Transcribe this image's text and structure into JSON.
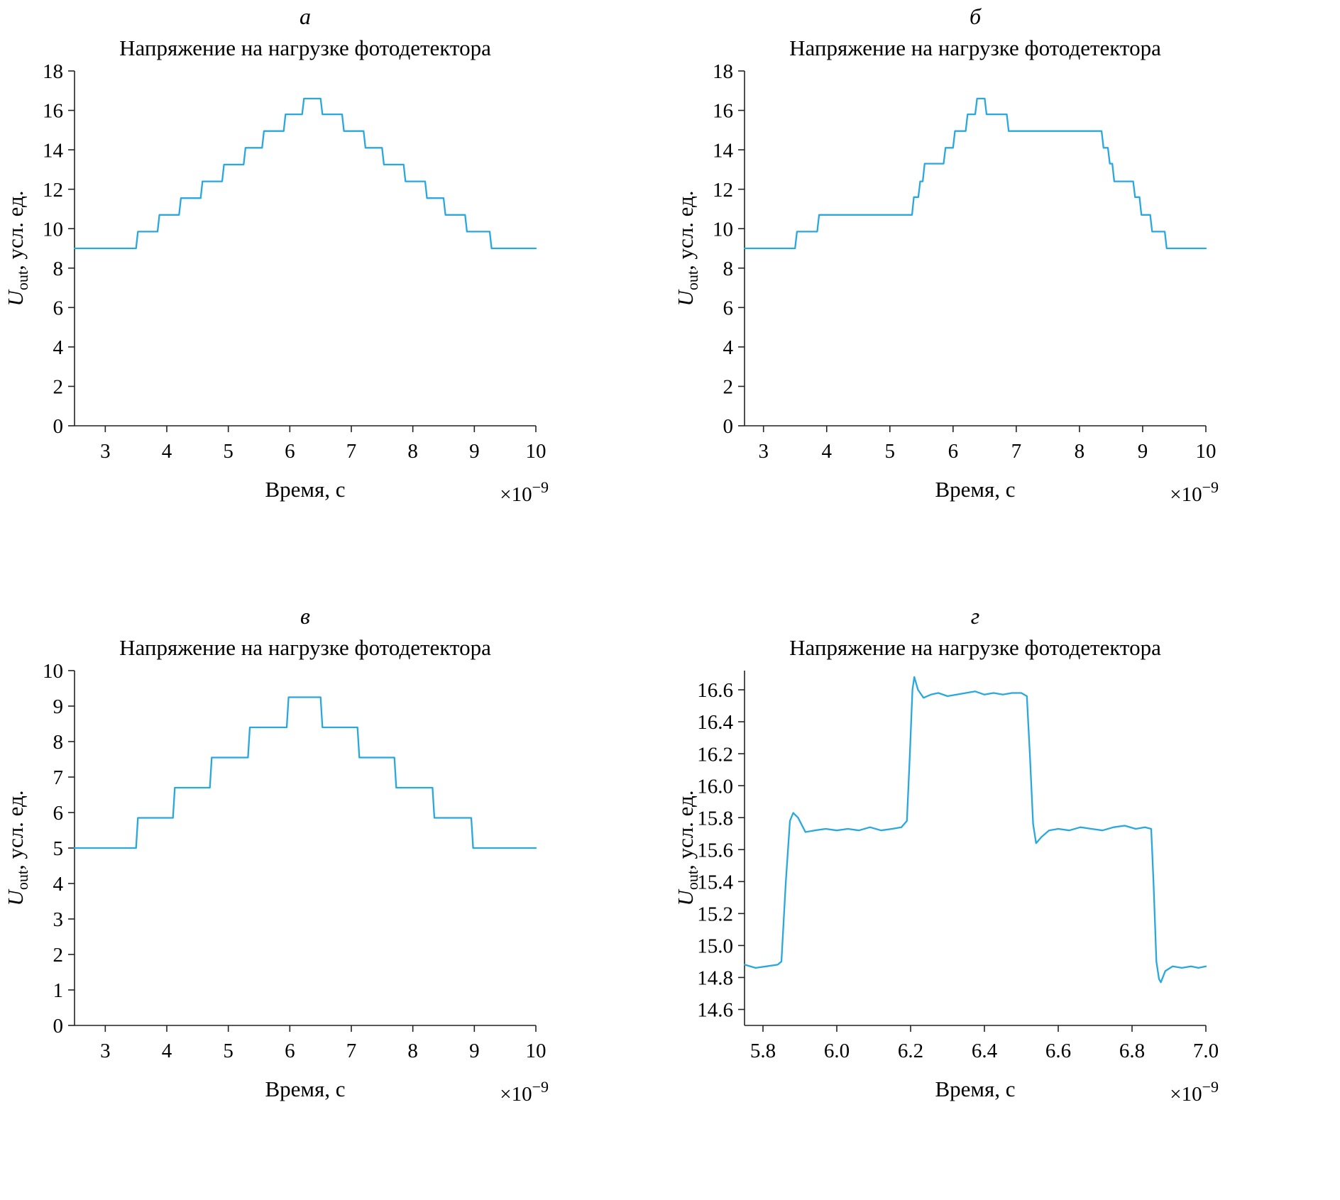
{
  "figure": {
    "background": "#ffffff",
    "axis_color": "#222222",
    "text_color": "#000000"
  },
  "chart_data": [
    {
      "type": "line",
      "panel_label": "а",
      "title": "Напряжение на нагрузке фотодетектора",
      "xlabel": "Время, с",
      "x_offset": {
        "base": "×10",
        "exp": "−9"
      },
      "ylabel": {
        "var": "U",
        "sub": "out",
        "rest": ", усл. ед."
      },
      "xlim": [
        2.5,
        10
      ],
      "ylim": [
        0,
        18
      ],
      "xticks": {
        "values": [
          3,
          4,
          5,
          6,
          7,
          8,
          9,
          10
        ],
        "labels": [
          "3",
          "4",
          "5",
          "6",
          "7",
          "8",
          "9",
          "10"
        ]
      },
      "yticks": {
        "values": [
          0,
          2,
          4,
          6,
          8,
          10,
          12,
          14,
          16,
          18
        ],
        "labels": [
          "0",
          "2",
          "4",
          "6",
          "8",
          "10",
          "12",
          "14",
          "16",
          "18"
        ]
      },
      "line_color": "#29A8E0",
      "legend": null,
      "grid": false,
      "series": [
        {
          "name": "Uout",
          "points": [
            [
              2.5,
              9
            ],
            [
              3.5,
              9
            ],
            [
              3.53,
              9.85
            ],
            [
              3.85,
              9.85
            ],
            [
              3.88,
              10.7
            ],
            [
              4.2,
              10.7
            ],
            [
              4.23,
              11.55
            ],
            [
              4.55,
              11.55
            ],
            [
              4.58,
              12.4
            ],
            [
              4.9,
              12.4
            ],
            [
              4.93,
              13.25
            ],
            [
              5.25,
              13.25
            ],
            [
              5.28,
              14.1
            ],
            [
              5.55,
              14.1
            ],
            [
              5.58,
              14.95
            ],
            [
              5.9,
              14.95
            ],
            [
              5.93,
              15.8
            ],
            [
              6.2,
              15.8
            ],
            [
              6.23,
              16.6
            ],
            [
              6.5,
              16.6
            ],
            [
              6.53,
              15.8
            ],
            [
              6.85,
              15.8
            ],
            [
              6.88,
              14.95
            ],
            [
              7.2,
              14.95
            ],
            [
              7.23,
              14.1
            ],
            [
              7.5,
              14.1
            ],
            [
              7.53,
              13.25
            ],
            [
              7.85,
              13.25
            ],
            [
              7.88,
              12.4
            ],
            [
              8.2,
              12.4
            ],
            [
              8.23,
              11.55
            ],
            [
              8.5,
              11.55
            ],
            [
              8.53,
              10.7
            ],
            [
              8.85,
              10.7
            ],
            [
              8.88,
              9.85
            ],
            [
              9.25,
              9.85
            ],
            [
              9.28,
              9
            ],
            [
              10,
              9
            ]
          ]
        }
      ]
    },
    {
      "type": "line",
      "panel_label": "б",
      "title": "Напряжение на нагрузке фотодетектора",
      "xlabel": "Время, с",
      "x_offset": {
        "base": "×10",
        "exp": "−9"
      },
      "ylabel": {
        "var": "U",
        "sub": "out",
        "rest": ", усл. ед."
      },
      "xlim": [
        2.7,
        10
      ],
      "ylim": [
        0,
        18
      ],
      "xticks": {
        "values": [
          3,
          4,
          5,
          6,
          7,
          8,
          9,
          10
        ],
        "labels": [
          "3",
          "4",
          "5",
          "6",
          "7",
          "8",
          "9",
          "10"
        ]
      },
      "yticks": {
        "values": [
          0,
          2,
          4,
          6,
          8,
          10,
          12,
          14,
          16,
          18
        ],
        "labels": [
          "0",
          "2",
          "4",
          "6",
          "8",
          "10",
          "12",
          "14",
          "16",
          "18"
        ]
      },
      "line_color": "#29A8E0",
      "legend": null,
      "grid": false,
      "series": [
        {
          "name": "Uout",
          "points": [
            [
              2.7,
              9
            ],
            [
              3.5,
              9
            ],
            [
              3.53,
              9.85
            ],
            [
              3.85,
              9.85
            ],
            [
              3.88,
              10.7
            ],
            [
              5.35,
              10.7
            ],
            [
              5.38,
              11.6
            ],
            [
              5.45,
              11.6
            ],
            [
              5.48,
              12.4
            ],
            [
              5.52,
              12.4
            ],
            [
              5.55,
              13.3
            ],
            [
              5.85,
              13.3
            ],
            [
              5.88,
              14.1
            ],
            [
              6.0,
              14.1
            ],
            [
              6.03,
              14.95
            ],
            [
              6.2,
              14.95
            ],
            [
              6.23,
              15.8
            ],
            [
              6.35,
              15.8
            ],
            [
              6.38,
              16.6
            ],
            [
              6.5,
              16.6
            ],
            [
              6.53,
              15.8
            ],
            [
              6.85,
              15.8
            ],
            [
              6.88,
              14.95
            ],
            [
              8.35,
              14.95
            ],
            [
              8.38,
              14.1
            ],
            [
              8.45,
              14.1
            ],
            [
              8.48,
              13.3
            ],
            [
              8.52,
              13.3
            ],
            [
              8.55,
              12.4
            ],
            [
              8.85,
              12.4
            ],
            [
              8.88,
              11.6
            ],
            [
              8.95,
              11.6
            ],
            [
              8.98,
              10.7
            ],
            [
              9.12,
              10.7
            ],
            [
              9.15,
              9.85
            ],
            [
              9.35,
              9.85
            ],
            [
              9.38,
              9
            ],
            [
              10,
              9
            ]
          ]
        }
      ]
    },
    {
      "type": "line",
      "panel_label": "в",
      "title": "Напряжение на нагрузке фотодетектора",
      "xlabel": "Время, с",
      "x_offset": {
        "base": "×10",
        "exp": "−9"
      },
      "ylabel": {
        "var": "U",
        "sub": "out",
        "rest": ", усл. ед."
      },
      "xlim": [
        2.5,
        10
      ],
      "ylim": [
        0,
        10
      ],
      "xticks": {
        "values": [
          3,
          4,
          5,
          6,
          7,
          8,
          9,
          10
        ],
        "labels": [
          "3",
          "4",
          "5",
          "6",
          "7",
          "8",
          "9",
          "10"
        ]
      },
      "yticks": {
        "values": [
          0,
          1,
          2,
          3,
          4,
          5,
          6,
          7,
          8,
          9,
          10
        ],
        "labels": [
          "0",
          "1",
          "2",
          "3",
          "4",
          "5",
          "6",
          "7",
          "8",
          "9",
          "10"
        ]
      },
      "line_color": "#29A8E0",
      "legend": null,
      "grid": false,
      "series": [
        {
          "name": "Uout",
          "points": [
            [
              2.5,
              5
            ],
            [
              3.5,
              5
            ],
            [
              3.53,
              5.85
            ],
            [
              4.1,
              5.85
            ],
            [
              4.13,
              6.7
            ],
            [
              4.7,
              6.7
            ],
            [
              4.73,
              7.55
            ],
            [
              5.32,
              7.55
            ],
            [
              5.35,
              8.4
            ],
            [
              5.95,
              8.4
            ],
            [
              5.98,
              9.25
            ],
            [
              6.5,
              9.25
            ],
            [
              6.53,
              8.4
            ],
            [
              7.1,
              8.4
            ],
            [
              7.13,
              7.55
            ],
            [
              7.7,
              7.55
            ],
            [
              7.73,
              6.7
            ],
            [
              8.32,
              6.7
            ],
            [
              8.35,
              5.85
            ],
            [
              8.95,
              5.85
            ],
            [
              8.98,
              5
            ],
            [
              10,
              5
            ]
          ]
        }
      ]
    },
    {
      "type": "line",
      "panel_label": "г",
      "title": "Напряжение на нагрузке фотодетектора",
      "xlabel": "Время, с",
      "x_offset": {
        "base": "×10",
        "exp": "−9"
      },
      "ylabel": {
        "var": "U",
        "sub": "out",
        "rest": ", усл. ед."
      },
      "xlim": [
        5.75,
        7.0
      ],
      "ylim": [
        14.5,
        16.72
      ],
      "xticks": {
        "values": [
          5.8,
          6.0,
          6.2,
          6.4,
          6.6,
          6.8,
          7.0
        ],
        "labels": [
          "5.8",
          "6.0",
          "6.2",
          "6.4",
          "6.6",
          "6.8",
          "7.0"
        ]
      },
      "yticks": {
        "values": [
          14.6,
          14.8,
          15.0,
          15.2,
          15.4,
          15.6,
          15.8,
          16.0,
          16.2,
          16.4,
          16.6
        ],
        "labels": [
          "14.6",
          "14.8",
          "15.0",
          "15.2",
          "15.4",
          "15.6",
          "15.8",
          "16.0",
          "16.2",
          "16.4",
          "16.6"
        ]
      },
      "line_color": "#29A8E0",
      "legend": null,
      "grid": false,
      "series": [
        {
          "name": "Uout",
          "points": [
            [
              5.75,
              14.88
            ],
            [
              5.78,
              14.86
            ],
            [
              5.81,
              14.87
            ],
            [
              5.84,
              14.88
            ],
            [
              5.85,
              14.9
            ],
            [
              5.862,
              15.4
            ],
            [
              5.873,
              15.78
            ],
            [
              5.882,
              15.83
            ],
            [
              5.895,
              15.8
            ],
            [
              5.915,
              15.71
            ],
            [
              5.94,
              15.72
            ],
            [
              5.97,
              15.73
            ],
            [
              6.0,
              15.72
            ],
            [
              6.03,
              15.73
            ],
            [
              6.06,
              15.72
            ],
            [
              6.09,
              15.74
            ],
            [
              6.12,
              15.72
            ],
            [
              6.15,
              15.73
            ],
            [
              6.175,
              15.74
            ],
            [
              6.19,
              15.78
            ],
            [
              6.198,
              16.2
            ],
            [
              6.205,
              16.6
            ],
            [
              6.21,
              16.68
            ],
            [
              6.22,
              16.6
            ],
            [
              6.235,
              16.55
            ],
            [
              6.255,
              16.57
            ],
            [
              6.275,
              16.58
            ],
            [
              6.3,
              16.56
            ],
            [
              6.325,
              16.57
            ],
            [
              6.35,
              16.58
            ],
            [
              6.375,
              16.59
            ],
            [
              6.4,
              16.57
            ],
            [
              6.425,
              16.58
            ],
            [
              6.45,
              16.57
            ],
            [
              6.475,
              16.58
            ],
            [
              6.5,
              16.58
            ],
            [
              6.515,
              16.56
            ],
            [
              6.523,
              16.2
            ],
            [
              6.532,
              15.76
            ],
            [
              6.54,
              15.64
            ],
            [
              6.555,
              15.68
            ],
            [
              6.575,
              15.72
            ],
            [
              6.6,
              15.73
            ],
            [
              6.63,
              15.72
            ],
            [
              6.66,
              15.74
            ],
            [
              6.69,
              15.73
            ],
            [
              6.72,
              15.72
            ],
            [
              6.75,
              15.74
            ],
            [
              6.78,
              15.75
            ],
            [
              6.81,
              15.73
            ],
            [
              6.835,
              15.74
            ],
            [
              6.852,
              15.73
            ],
            [
              6.858,
              15.4
            ],
            [
              6.866,
              14.9
            ],
            [
              6.873,
              14.79
            ],
            [
              6.878,
              14.77
            ],
            [
              6.89,
              14.84
            ],
            [
              6.91,
              14.87
            ],
            [
              6.935,
              14.86
            ],
            [
              6.96,
              14.87
            ],
            [
              6.98,
              14.86
            ],
            [
              7.0,
              14.87
            ]
          ]
        }
      ]
    }
  ]
}
